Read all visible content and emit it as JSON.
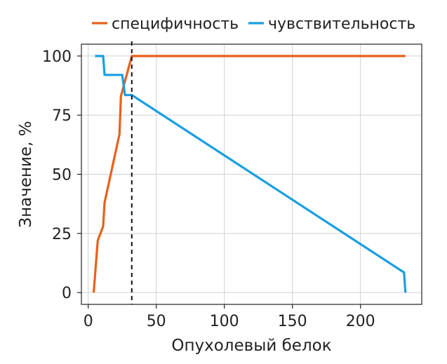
{
  "chart_data": {
    "type": "line",
    "xlabel": "Опухолевый белок",
    "ylabel": "Значение, %",
    "xlim": [
      -5,
      245
    ],
    "ylim": [
      -5,
      105
    ],
    "x_ticks": [
      0,
      50,
      100,
      150,
      200
    ],
    "y_ticks": [
      0,
      25,
      50,
      75,
      100
    ],
    "grid": true,
    "legend_position": "top",
    "cutoff_x": 32,
    "series": [
      {
        "name": "специфичность",
        "color": "#e8601c",
        "points": [
          [
            4,
            0
          ],
          [
            7,
            22
          ],
          [
            11,
            28
          ],
          [
            12,
            38
          ],
          [
            23,
            67
          ],
          [
            24,
            83
          ],
          [
            32,
            100
          ],
          [
            233,
            100
          ]
        ]
      },
      {
        "name": "чувствительность",
        "color": "#1a9ee0",
        "points": [
          [
            5,
            100
          ],
          [
            11,
            100
          ],
          [
            12,
            92
          ],
          [
            25,
            92
          ],
          [
            27,
            83.5
          ],
          [
            32,
            83.5
          ],
          [
            232,
            8.5
          ],
          [
            233,
            0
          ]
        ]
      }
    ]
  }
}
